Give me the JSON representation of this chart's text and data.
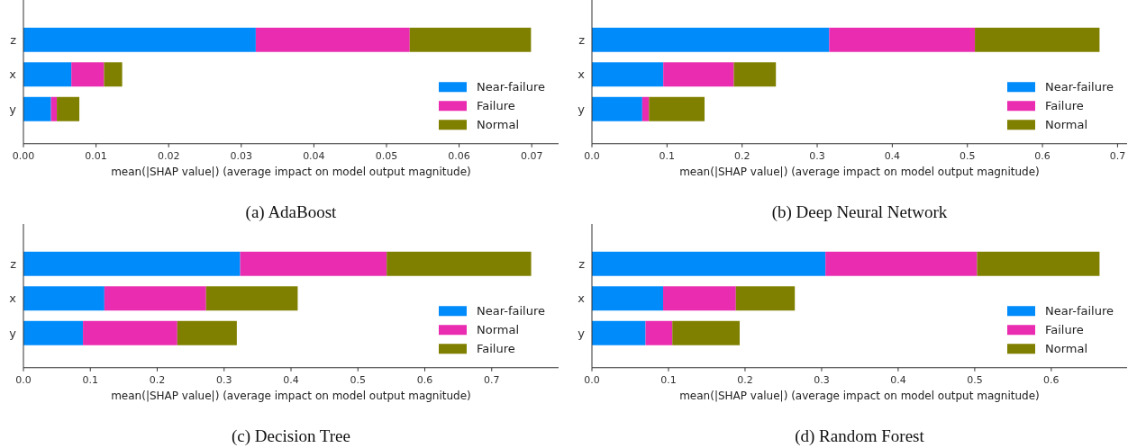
{
  "chart_data": [
    {
      "type": "bar",
      "orientation": "horizontal",
      "stacked": true,
      "title": "(a) AdaBoost",
      "xlabel": "mean(|SHAP value|) (average impact on model output magnitude)",
      "categories": [
        "z",
        "x",
        "y"
      ],
      "legend": "bottom right",
      "xlim": [
        0,
        0.0737
      ],
      "xticks": [
        {
          "value": 0,
          "label": "0.00"
        },
        {
          "value": 0.01,
          "label": "0.01"
        },
        {
          "value": 0.02,
          "label": "0.02"
        },
        {
          "value": 0.03,
          "label": "0.03"
        },
        {
          "value": 0.04,
          "label": "0.04"
        },
        {
          "value": 0.05,
          "label": "0.05"
        },
        {
          "value": 0.06,
          "label": "0.06"
        },
        {
          "value": 0.07,
          "label": "0.07"
        }
      ],
      "series": [
        {
          "name": "Near-failure",
          "color": "#008bfb",
          "values": [
            0.032,
            0.0066,
            0.0038
          ]
        },
        {
          "name": "Failure",
          "color": "#e92cb0",
          "values": [
            0.0212,
            0.0045,
            0.0008
          ]
        },
        {
          "name": "Normal",
          "color": "#808000",
          "values": [
            0.0167,
            0.0025,
            0.0031
          ]
        }
      ]
    },
    {
      "type": "bar",
      "orientation": "horizontal",
      "stacked": true,
      "title": "(b) Deep Neural Network",
      "xlabel": "mean(|SHAP value|) (average impact on model output magnitude)",
      "categories": [
        "z",
        "x",
        "y"
      ],
      "legend": "bottom right",
      "xlim": [
        0,
        0.7127
      ],
      "xticks": [
        {
          "value": 0,
          "label": "0.0"
        },
        0.1,
        0.2,
        0.3,
        0.4,
        0.5,
        0.6,
        0.7
      ],
      "series": [
        {
          "name": "Near-failure",
          "color": "#008bfb",
          "values": [
            0.316,
            0.095,
            0.067
          ]
        },
        {
          "name": "Failure",
          "color": "#e92cb0",
          "values": [
            0.194,
            0.094,
            0.009
          ]
        },
        {
          "name": "Normal",
          "color": "#808000",
          "values": [
            0.166,
            0.056,
            0.074
          ]
        }
      ]
    },
    {
      "type": "bar",
      "orientation": "horizontal",
      "stacked": true,
      "title": "(c) Decision Tree",
      "xlabel": "mean(|SHAP value|) (average impact on model output magnitude)",
      "categories": [
        "z",
        "x",
        "y"
      ],
      "legend": "bottom right",
      "xlim": [
        0,
        0.8
      ],
      "xticks": [
        {
          "value": 0,
          "label": "0.0"
        },
        0.1,
        0.2,
        0.3,
        0.4,
        0.5,
        0.6,
        0.7
      ],
      "series": [
        {
          "name": "Near-failure",
          "color": "#008bfb",
          "values": [
            0.324,
            0.121,
            0.089
          ]
        },
        {
          "name": "Normal",
          "color": "#e92cb0",
          "values": [
            0.219,
            0.152,
            0.141
          ]
        },
        {
          "name": "Failure",
          "color": "#808000",
          "values": [
            0.216,
            0.137,
            0.089
          ]
        }
      ]
    },
    {
      "type": "bar",
      "orientation": "horizontal",
      "stacked": true,
      "title": "(d) Random Forest",
      "xlabel": "mean(|SHAP value|) (average impact on model output magnitude)",
      "categories": [
        "z",
        "x",
        "y"
      ],
      "legend": "bottom right",
      "xlim": [
        0,
        0.699
      ],
      "xticks": [
        {
          "value": 0,
          "label": "0.0"
        },
        0.1,
        0.2,
        0.3,
        0.4,
        0.5,
        0.6
      ],
      "series": [
        {
          "name": "Near-failure",
          "color": "#008bfb",
          "values": [
            0.305,
            0.093,
            0.07
          ]
        },
        {
          "name": "Failure",
          "color": "#e92cb0",
          "values": [
            0.198,
            0.095,
            0.035
          ]
        },
        {
          "name": "Normal",
          "color": "#808000",
          "values": [
            0.16,
            0.077,
            0.088
          ]
        }
      ]
    }
  ]
}
